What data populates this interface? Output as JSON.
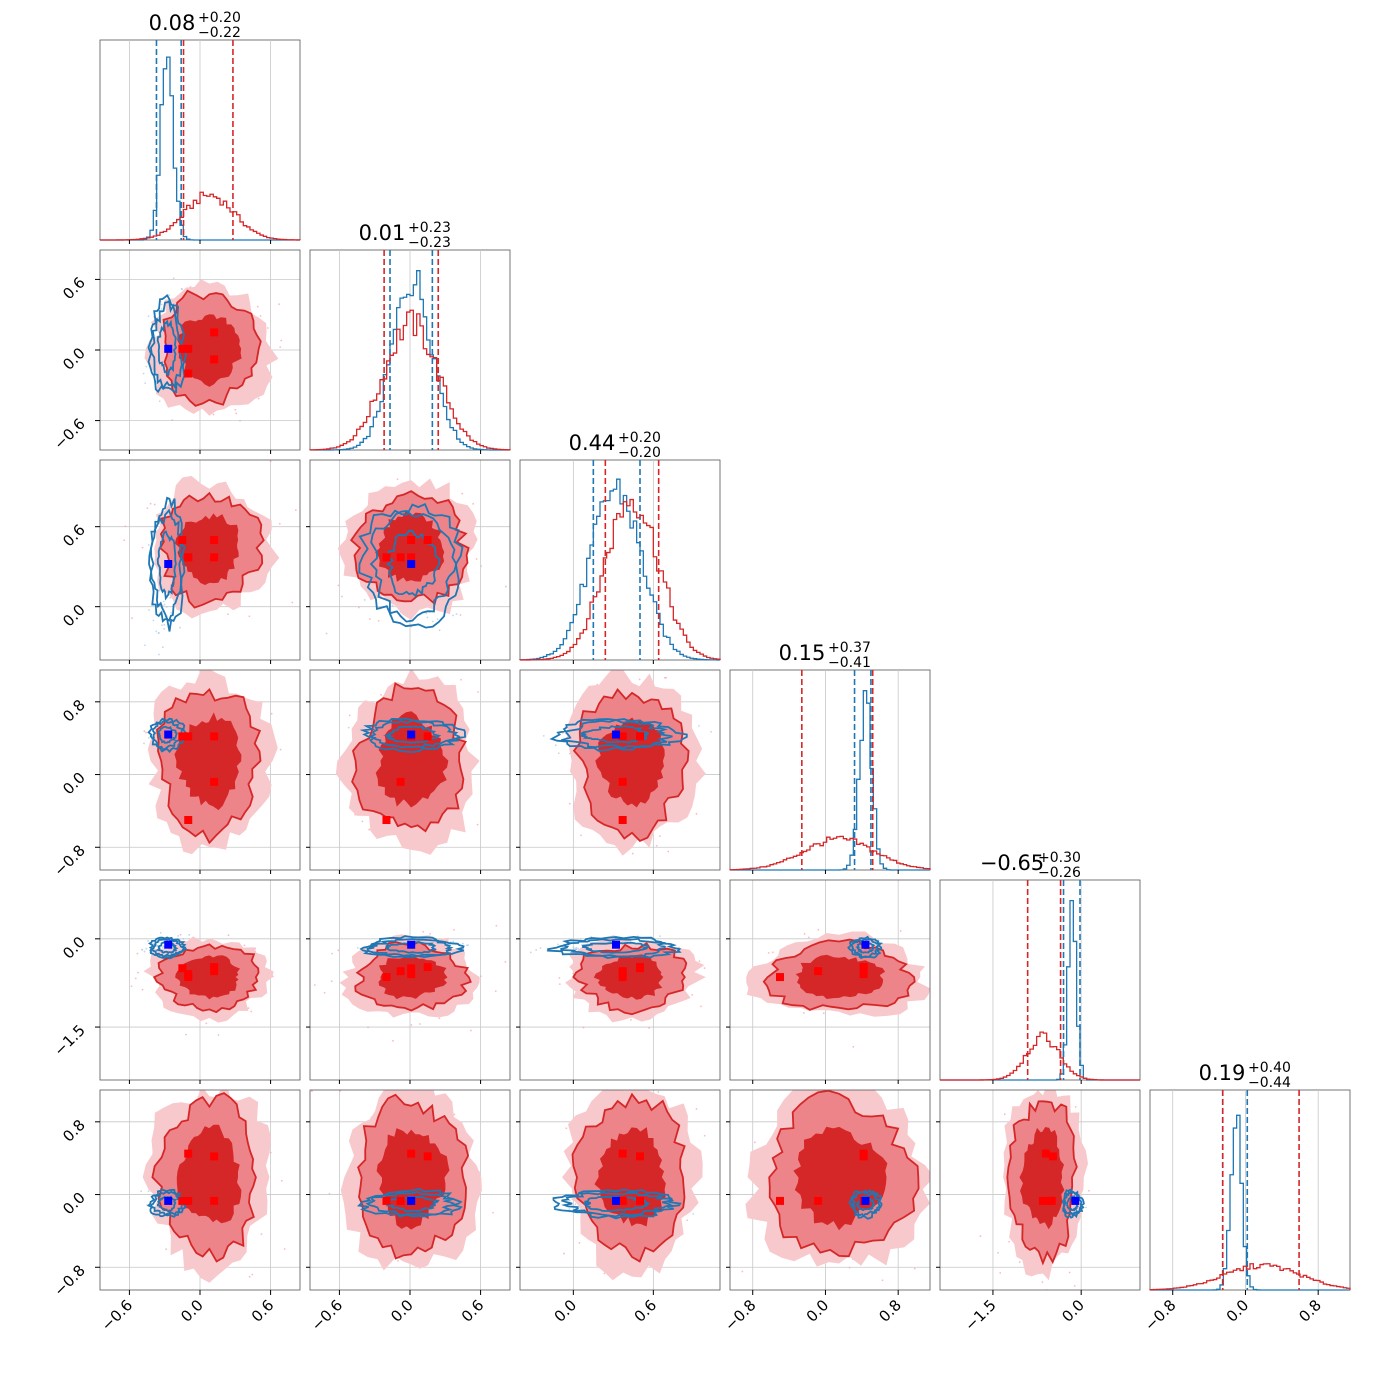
{
  "chart_data": {
    "type": "corner",
    "n_params": 6,
    "colors": {
      "red": "#d62728",
      "blue": "#1f77b4",
      "marker_red": "#ff0000",
      "marker_blue": "#0000ff",
      "grid": "#c8c8c8",
      "axes": "#555555"
    },
    "params": [
      {
        "median": "0.08",
        "plus": "+0.20",
        "minus": "−0.22",
        "range": [
          -0.85,
          0.85
        ],
        "ticks": [
          -0.6,
          0.0,
          0.6
        ],
        "ticklabels": [
          "−0.6",
          "0.0",
          "0.6"
        ],
        "red": {
          "mean": 0.08,
          "sd": 0.21,
          "q": [
            -0.14,
            0.28
          ]
        },
        "blue": {
          "mean": -0.28,
          "sd": 0.055,
          "q": [
            -0.37,
            -0.16
          ]
        }
      },
      {
        "median": "0.01",
        "plus": "+0.23",
        "minus": "−0.23",
        "range": [
          -0.85,
          0.85
        ],
        "ticks": [
          -0.6,
          0.0,
          0.6
        ],
        "ticklabels": [
          "−0.6",
          "0.0",
          "0.6"
        ],
        "red": {
          "mean": 0.01,
          "sd": 0.23,
          "q": [
            -0.22,
            0.24
          ]
        },
        "blue": {
          "mean": 0.02,
          "sd": 0.17,
          "q": [
            -0.17,
            0.19
          ]
        }
      },
      {
        "median": "0.44",
        "plus": "+0.20",
        "minus": "−0.20",
        "range": [
          -0.4,
          1.1
        ],
        "ticks": [
          0.0,
          0.6
        ],
        "ticklabels": [
          "0.0",
          "0.6"
        ],
        "red": {
          "mean": 0.44,
          "sd": 0.2,
          "q": [
            0.24,
            0.64
          ]
        },
        "blue": {
          "mean": 0.32,
          "sd": 0.19,
          "q": [
            0.15,
            0.5
          ]
        }
      },
      {
        "median": "0.15",
        "plus": "+0.37",
        "minus": "−0.41",
        "range": [
          -1.05,
          1.15
        ],
        "ticks": [
          -0.8,
          0.0,
          0.8
        ],
        "ticklabels": [
          "−0.8",
          "0.0",
          "0.8"
        ],
        "red": {
          "mean": 0.15,
          "sd": 0.39,
          "q": [
            -0.26,
            0.52
          ]
        },
        "blue": {
          "mean": 0.44,
          "sd": 0.07,
          "q": [
            0.32,
            0.5
          ]
        }
      },
      {
        "median": "−0.65",
        "plus": "+0.30",
        "minus": "−0.26",
        "range": [
          -2.4,
          1.0
        ],
        "ticks": [
          -1.5,
          0.0
        ],
        "ticklabels": [
          "−1.5",
          "0.0"
        ],
        "red": {
          "mean": -0.65,
          "sd": 0.28,
          "q": [
            -0.91,
            -0.35
          ]
        },
        "blue": {
          "mean": -0.15,
          "sd": 0.07,
          "q": [
            -0.3,
            -0.02
          ]
        }
      },
      {
        "median": "0.19",
        "plus": "+0.40",
        "minus": "−0.44",
        "range": [
          -1.05,
          1.15
        ],
        "ticks": [
          -0.8,
          0.0,
          0.8
        ],
        "ticklabels": [
          "−0.8",
          "0.0",
          "0.8"
        ],
        "red": {
          "mean": 0.19,
          "sd": 0.42,
          "q": [
            -0.25,
            0.59
          ]
        },
        "blue": {
          "mean": -0.1,
          "sd": 0.06,
          "q": [
            -0.25,
            0.02
          ]
        }
      }
    ],
    "pairs": {
      "1-0": {
        "red": {
          "c": [
            0.01,
            0.08
          ],
          "s": [
            0.23,
            0.21
          ]
        },
        "blue": {
          "c": [
            0.02,
            -0.28
          ],
          "s": [
            0.17,
            0.06
          ]
        }
      },
      "2-0": {
        "red": {
          "c": [
            0.44,
            0.08
          ],
          "s": [
            0.2,
            0.21
          ]
        },
        "blue": {
          "c": [
            0.32,
            -0.28
          ],
          "s": [
            0.19,
            0.06
          ]
        }
      },
      "2-1": {
        "red": {
          "c": [
            0.44,
            0.01
          ],
          "s": [
            0.2,
            0.23
          ]
        },
        "blue": {
          "c": [
            0.32,
            0.02
          ],
          "s": [
            0.19,
            0.17
          ]
        }
      },
      "3-0": {
        "red": {
          "c": [
            0.15,
            0.08
          ],
          "s": [
            0.39,
            0.21
          ]
        },
        "blue": {
          "c": [
            0.44,
            -0.28
          ],
          "s": [
            0.07,
            0.06
          ]
        }
      },
      "3-1": {
        "red": {
          "c": [
            0.15,
            0.01
          ],
          "s": [
            0.39,
            0.23
          ]
        },
        "blue": {
          "c": [
            0.44,
            0.02
          ],
          "s": [
            0.07,
            0.17
          ]
        }
      },
      "3-2": {
        "red": {
          "c": [
            0.15,
            0.44
          ],
          "s": [
            0.39,
            0.2
          ]
        },
        "blue": {
          "c": [
            0.44,
            0.32
          ],
          "s": [
            0.07,
            0.19
          ]
        }
      },
      "4-0": {
        "red": {
          "c": [
            -0.65,
            0.08
          ],
          "s": [
            0.28,
            0.21
          ]
        },
        "blue": {
          "c": [
            -0.15,
            -0.28
          ],
          "s": [
            0.07,
            0.06
          ]
        }
      },
      "4-1": {
        "red": {
          "c": [
            -0.65,
            0.01
          ],
          "s": [
            0.28,
            0.23
          ]
        },
        "blue": {
          "c": [
            -0.15,
            0.02
          ],
          "s": [
            0.07,
            0.17
          ]
        }
      },
      "4-2": {
        "red": {
          "c": [
            -0.65,
            0.44
          ],
          "s": [
            0.28,
            0.2
          ]
        },
        "blue": {
          "c": [
            -0.15,
            0.32
          ],
          "s": [
            0.07,
            0.19
          ]
        }
      },
      "4-3": {
        "red": {
          "c": [
            -0.65,
            0.15
          ],
          "s": [
            0.28,
            0.39
          ]
        },
        "blue": {
          "c": [
            -0.15,
            0.44
          ],
          "s": [
            0.07,
            0.07
          ]
        }
      },
      "5-0": {
        "red": {
          "c": [
            0.19,
            0.08
          ],
          "s": [
            0.42,
            0.21
          ]
        },
        "blue": {
          "c": [
            -0.1,
            -0.28
          ],
          "s": [
            0.06,
            0.06
          ]
        }
      },
      "5-1": {
        "red": {
          "c": [
            0.19,
            0.01
          ],
          "s": [
            0.42,
            0.23
          ]
        },
        "blue": {
          "c": [
            -0.1,
            0.02
          ],
          "s": [
            0.06,
            0.17
          ]
        }
      },
      "5-2": {
        "red": {
          "c": [
            0.19,
            0.44
          ],
          "s": [
            0.42,
            0.2
          ]
        },
        "blue": {
          "c": [
            -0.1,
            0.32
          ],
          "s": [
            0.06,
            0.19
          ]
        }
      },
      "5-3": {
        "red": {
          "c": [
            0.19,
            0.15
          ],
          "s": [
            0.42,
            0.39
          ]
        },
        "blue": {
          "c": [
            -0.1,
            0.44
          ],
          "s": [
            0.06,
            0.07
          ]
        }
      },
      "5-4": {
        "red": {
          "c": [
            0.19,
            -0.65
          ],
          "s": [
            0.42,
            0.28
          ]
        },
        "blue": {
          "c": [
            -0.1,
            -0.15
          ],
          "s": [
            0.06,
            0.07
          ]
        }
      }
    },
    "markers": {
      "red_points": [
        [
          -0.1,
          0.01,
          0.37,
          0.42,
          -0.6,
          0.45
        ],
        [
          0.12,
          0.15,
          0.5,
          0.42,
          -0.48,
          0.42
        ],
        [
          -0.1,
          -0.2,
          0.37,
          -0.5,
          -0.65,
          -0.07
        ],
        [
          0.12,
          -0.08,
          0.37,
          -0.08,
          -0.55,
          -0.07
        ],
        [
          -0.15,
          0.01,
          0.5,
          0.42,
          -0.5,
          -0.07
        ]
      ],
      "blue_point": [
        -0.27,
        0.01,
        0.32,
        0.44,
        -0.1,
        -0.07
      ]
    }
  }
}
